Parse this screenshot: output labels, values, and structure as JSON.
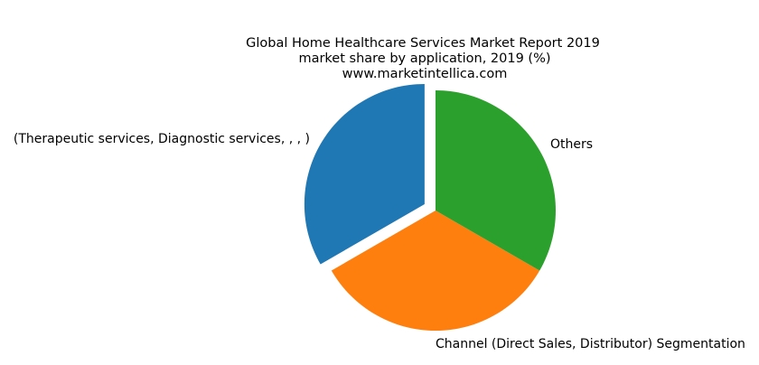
{
  "chart_data": {
    "type": "pie",
    "title": [
      "Global Home Healthcare Services Market Report 2019",
      "market share by application, 2019 (%)",
      "www.marketintellica.com"
    ],
    "slices": [
      {
        "label": "(Therapeutic services, Diagnostic services, , , )",
        "value": 33.33,
        "color": "#1f77b4",
        "exploded": true
      },
      {
        "label": "Channel (Direct Sales, Distributor) Segmentation",
        "value": 33.33,
        "color": "#ff7f0e",
        "exploded": false
      },
      {
        "label": "Others",
        "value": 33.33,
        "color": "#2ca02c",
        "exploded": false
      }
    ],
    "start_angle_deg": 90,
    "direction": "counterclockwise"
  }
}
